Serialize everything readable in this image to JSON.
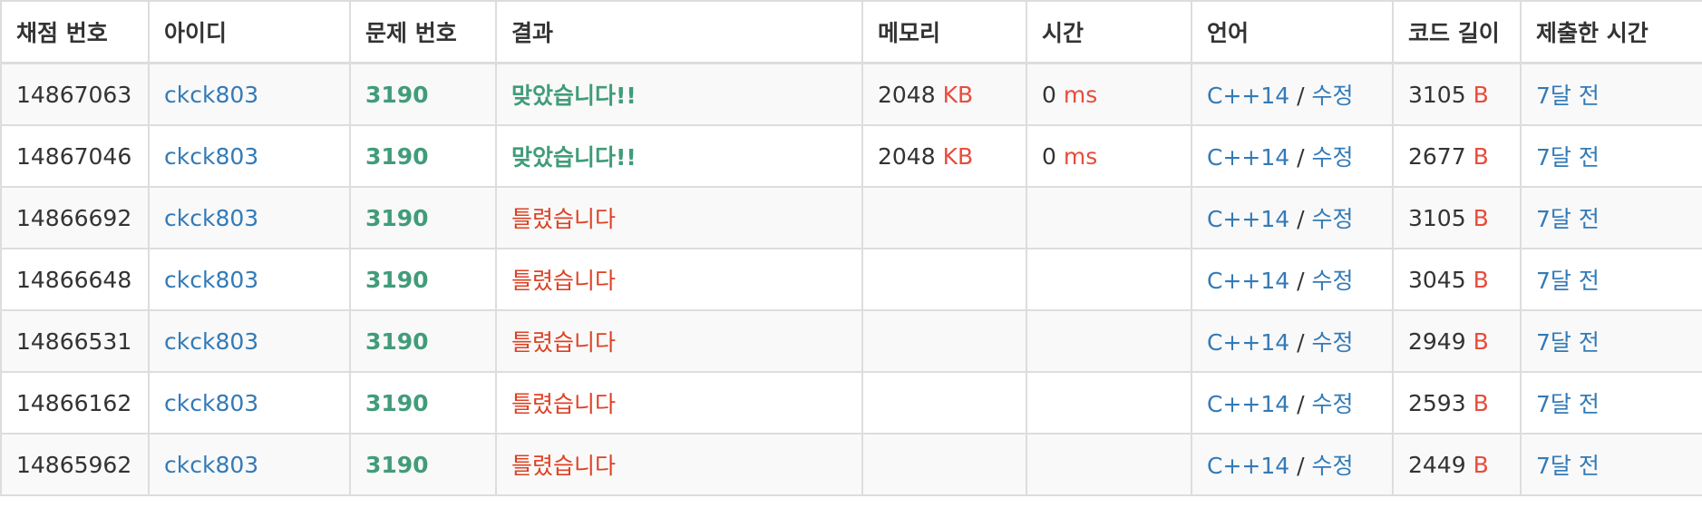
{
  "headers": [
    "채점 번호",
    "아이디",
    "문제 번호",
    "결과",
    "메모리",
    "시간",
    "언어",
    "코드 길이",
    "제출한 시간"
  ],
  "units": {
    "memory": "KB",
    "time": "ms",
    "code": "B"
  },
  "edit_separator": "/",
  "rows": [
    {
      "id": "14867063",
      "user": "ckck803",
      "problem": "3190",
      "result": "맞았습니다!!",
      "result_ok": true,
      "memory": "2048",
      "time": "0",
      "lang": "C++14",
      "edit": "수정",
      "code_len": "3105",
      "submitted": "7달 전"
    },
    {
      "id": "14867046",
      "user": "ckck803",
      "problem": "3190",
      "result": "맞았습니다!!",
      "result_ok": true,
      "memory": "2048",
      "time": "0",
      "lang": "C++14",
      "edit": "수정",
      "code_len": "2677",
      "submitted": "7달 전"
    },
    {
      "id": "14866692",
      "user": "ckck803",
      "problem": "3190",
      "result": "틀렸습니다",
      "result_ok": false,
      "memory": "",
      "time": "",
      "lang": "C++14",
      "edit": "수정",
      "code_len": "3105",
      "submitted": "7달 전"
    },
    {
      "id": "14866648",
      "user": "ckck803",
      "problem": "3190",
      "result": "틀렸습니다",
      "result_ok": false,
      "memory": "",
      "time": "",
      "lang": "C++14",
      "edit": "수정",
      "code_len": "3045",
      "submitted": "7달 전"
    },
    {
      "id": "14866531",
      "user": "ckck803",
      "problem": "3190",
      "result": "틀렸습니다",
      "result_ok": false,
      "memory": "",
      "time": "",
      "lang": "C++14",
      "edit": "수정",
      "code_len": "2949",
      "submitted": "7달 전"
    },
    {
      "id": "14866162",
      "user": "ckck803",
      "problem": "3190",
      "result": "틀렸습니다",
      "result_ok": false,
      "memory": "",
      "time": "",
      "lang": "C++14",
      "edit": "수정",
      "code_len": "2593",
      "submitted": "7달 전"
    },
    {
      "id": "14865962",
      "user": "ckck803",
      "problem": "3190",
      "result": "틀렸습니다",
      "result_ok": false,
      "memory": "",
      "time": "",
      "lang": "C++14",
      "edit": "수정",
      "code_len": "2449",
      "submitted": "7달 전"
    }
  ],
  "colors": {
    "link": "#337ab7",
    "accepted": "#419c79",
    "wrong": "#dd4124",
    "unit": "#e74c3c",
    "border": "#dddddd",
    "stripe": "#f9f9f9"
  }
}
